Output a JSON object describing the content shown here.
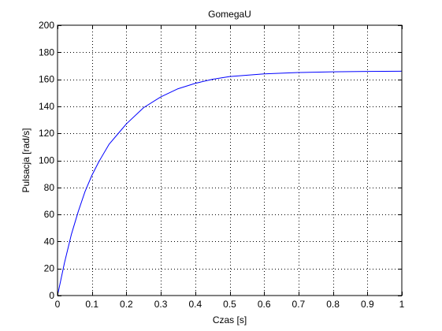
{
  "chart_data": {
    "type": "line",
    "title": "GomegaU",
    "xlabel": "Czas [s]",
    "ylabel": "Pulsacja [rad/s]",
    "xlim": [
      0,
      1
    ],
    "ylim": [
      0,
      200
    ],
    "xticks": [
      0,
      0.1,
      0.2,
      0.3,
      0.4,
      0.5,
      0.6,
      0.7,
      0.8,
      0.9,
      1
    ],
    "xtick_labels": [
      "0",
      "0.1",
      "0.2",
      "0.3",
      "0.4",
      "0.5",
      "0.6",
      "0.7",
      "0.8",
      "0.9",
      "1"
    ],
    "yticks": [
      0,
      20,
      40,
      60,
      80,
      100,
      120,
      140,
      160,
      180,
      200
    ],
    "ytick_labels": [
      "0",
      "20",
      "40",
      "60",
      "80",
      "100",
      "120",
      "140",
      "160",
      "180",
      "200"
    ],
    "grid": true,
    "grid_style": "dotted",
    "line_color": "#0000ff",
    "series": [
      {
        "x": [
          0,
          0.02,
          0.04,
          0.06,
          0.08,
          0.1,
          0.12,
          0.15,
          0.18,
          0.2,
          0.25,
          0.3,
          0.35,
          0.4,
          0.45,
          0.5,
          0.6,
          0.7,
          0.8,
          0.9,
          1.0
        ],
        "values": [
          0,
          24,
          45,
          62,
          77,
          89,
          99,
          112,
          121,
          127,
          139,
          147,
          153,
          157,
          160,
          162,
          164,
          165,
          165.5,
          165.8,
          166
        ]
      }
    ]
  }
}
